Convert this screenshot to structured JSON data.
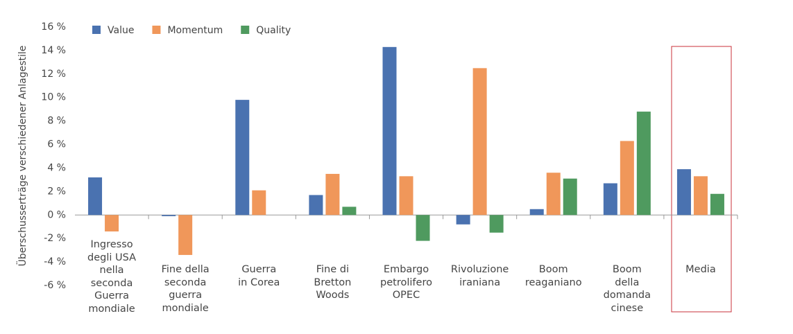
{
  "chart_data": {
    "type": "bar",
    "y_label": "Überschusserträge verschiedener Anlagestile",
    "categories": [
      "Ingresso\ndegli USA\nnella\nseconda\nGuerra\nmondiale",
      "Fine della\nseconda\nguerra\nmondiale",
      "Guerra\nin Corea",
      "Fine di\nBretton\nWoods",
      "Embargo\npetrolifero\nOPEC",
      "Rivoluzione\niraniana",
      "Boom\nreaganiano",
      "Boom\ndella\ndomanda\ncinese",
      "Media"
    ],
    "series": [
      {
        "name": "Value",
        "color": "#4a72b0",
        "values": [
          3.2,
          -0.1,
          9.8,
          1.7,
          14.3,
          -0.8,
          0.5,
          2.7,
          3.9
        ]
      },
      {
        "name": "Momentum",
        "color": "#f0975a",
        "values": [
          -1.4,
          -3.4,
          2.1,
          3.5,
          3.3,
          12.5,
          3.6,
          6.3,
          3.3
        ]
      },
      {
        "name": "Quality",
        "color": "#4f9a5f",
        "values": [
          null,
          null,
          null,
          0.7,
          -2.2,
          -1.5,
          3.1,
          8.8,
          1.8
        ]
      }
    ],
    "ylim": [
      -6,
      16
    ],
    "yticks": [
      {
        "value": -6,
        "label": "-6 %"
      },
      {
        "value": -4,
        "label": "-4 %"
      },
      {
        "value": -2,
        "label": "-2 %"
      },
      {
        "value": 0,
        "label": "0 %"
      },
      {
        "value": 2,
        "label": "2 %"
      },
      {
        "value": 4,
        "label": "4 %"
      },
      {
        "value": 6,
        "label": "6 %"
      },
      {
        "value": 8,
        "label": "8 %"
      },
      {
        "value": 10,
        "label": "10 %"
      },
      {
        "value": 12,
        "label": "12 %"
      },
      {
        "value": 14,
        "label": "14 %"
      },
      {
        "value": 16,
        "label": "16 %"
      }
    ],
    "grid": false,
    "legend": "top-left"
  }
}
